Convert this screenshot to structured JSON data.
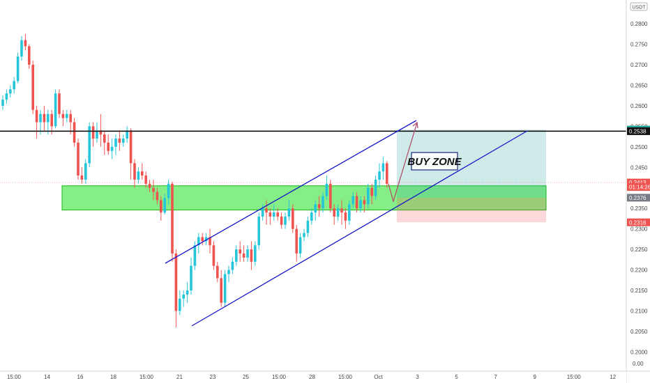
{
  "chart_data": {
    "type": "candlestick",
    "currency": "USDT",
    "y_axis": {
      "range": [
        0.1985,
        0.2835
      ],
      "ticks": [
        "0.2800",
        "0.2750",
        "0.2700",
        "0.2650",
        "0.2600",
        "0.2550",
        "0.2500",
        "0.2450",
        "0.2400",
        "0.2350",
        "0.2300",
        "0.2250",
        "0.2200",
        "0.2150",
        "0.2100",
        "0.2050",
        "0.2000"
      ],
      "bottom_label": "0.00"
    },
    "x_axis": {
      "ticks": [
        "15:00",
        "14",
        "16",
        "18",
        "15:00",
        "21",
        "23",
        "25",
        "15:00",
        "28",
        "15:00",
        "Oct",
        "3",
        "5",
        "7",
        "9",
        "15:00",
        "12",
        "1"
      ]
    },
    "price_tags": [
      {
        "text": "0.2542",
        "price": 0.2542,
        "color": "#26a69a"
      },
      {
        "text": "0.2538",
        "price": 0.2538,
        "color": "#111111"
      },
      {
        "text": "0.2413",
        "price": 0.2413,
        "color": "#ef5350"
      },
      {
        "text": "01:14:26",
        "price": 0.2402,
        "color": "#ef5350"
      },
      {
        "text": "0.2376",
        "price": 0.2376,
        "color": "#787b86"
      },
      {
        "text": "0.2316",
        "price": 0.2316,
        "color": "#ef5350"
      }
    ],
    "annotation": "BUY ZONE",
    "horizontal_line_price": 0.2538,
    "support_zone": [
      0.2346,
      0.2405
    ],
    "long_position": {
      "entry": 0.2376,
      "target": 0.2542,
      "stop": 0.2316
    },
    "colors": {
      "up": "#26c6da",
      "down": "#ef5350",
      "channel": "#1515c8",
      "zone": "#5de85d"
    },
    "candles": [
      [
        0.26,
        0.2615,
        0.259,
        0.2625
      ],
      [
        0.2615,
        0.263,
        0.2605,
        0.264
      ],
      [
        0.263,
        0.264,
        0.262,
        0.265
      ],
      [
        0.264,
        0.266,
        0.263,
        0.267
      ],
      [
        0.266,
        0.272,
        0.2655,
        0.273
      ],
      [
        0.272,
        0.276,
        0.271,
        0.277
      ],
      [
        0.276,
        0.2745,
        0.2735,
        0.2775
      ],
      [
        0.2745,
        0.27,
        0.269,
        0.275
      ],
      [
        0.27,
        0.259,
        0.258,
        0.271
      ],
      [
        0.259,
        0.256,
        0.252,
        0.26
      ],
      [
        0.256,
        0.258,
        0.253,
        0.259
      ],
      [
        0.258,
        0.256,
        0.254,
        0.26
      ],
      [
        0.256,
        0.258,
        0.253,
        0.259
      ],
      [
        0.258,
        0.255,
        0.253,
        0.259
      ],
      [
        0.255,
        0.263,
        0.2545,
        0.264
      ],
      [
        0.263,
        0.258,
        0.257,
        0.264
      ],
      [
        0.258,
        0.257,
        0.255,
        0.259
      ],
      [
        0.257,
        0.258,
        0.256,
        0.259
      ],
      [
        0.258,
        0.256,
        0.253,
        0.259
      ],
      [
        0.256,
        0.251,
        0.25,
        0.257
      ],
      [
        0.251,
        0.243,
        0.242,
        0.252
      ],
      [
        0.243,
        0.242,
        0.241,
        0.245
      ],
      [
        0.242,
        0.246,
        0.241,
        0.247
      ],
      [
        0.246,
        0.255,
        0.245,
        0.256
      ],
      [
        0.255,
        0.252,
        0.25,
        0.256
      ],
      [
        0.252,
        0.254,
        0.251,
        0.256
      ],
      [
        0.254,
        0.253,
        0.25,
        0.258
      ],
      [
        0.253,
        0.251,
        0.248,
        0.254
      ],
      [
        0.251,
        0.249,
        0.248,
        0.253
      ],
      [
        0.249,
        0.25,
        0.247,
        0.252
      ],
      [
        0.25,
        0.252,
        0.248,
        0.253
      ],
      [
        0.252,
        0.251,
        0.249,
        0.254
      ],
      [
        0.251,
        0.252,
        0.25,
        0.253
      ],
      [
        0.252,
        0.254,
        0.251,
        0.255
      ],
      [
        0.254,
        0.246,
        0.242,
        0.2545
      ],
      [
        0.246,
        0.242,
        0.24,
        0.247
      ],
      [
        0.242,
        0.244,
        0.241,
        0.245
      ],
      [
        0.244,
        0.243,
        0.242,
        0.246
      ],
      [
        0.243,
        0.241,
        0.24,
        0.244
      ],
      [
        0.241,
        0.24,
        0.239,
        0.242
      ],
      [
        0.24,
        0.239,
        0.237,
        0.242
      ],
      [
        0.239,
        0.237,
        0.236,
        0.24
      ],
      [
        0.237,
        0.234,
        0.232,
        0.238
      ],
      [
        0.234,
        0.2375,
        0.2335,
        0.2385
      ],
      [
        0.2375,
        0.241,
        0.236,
        0.242
      ],
      [
        0.241,
        0.224,
        0.222,
        0.2415
      ],
      [
        0.224,
        0.21,
        0.206,
        0.225
      ],
      [
        0.21,
        0.213,
        0.209,
        0.215
      ],
      [
        0.213,
        0.214,
        0.211,
        0.215
      ],
      [
        0.214,
        0.215,
        0.212,
        0.217
      ],
      [
        0.215,
        0.221,
        0.214,
        0.223
      ],
      [
        0.221,
        0.226,
        0.22,
        0.227
      ],
      [
        0.226,
        0.228,
        0.224,
        0.229
      ],
      [
        0.228,
        0.227,
        0.226,
        0.229
      ],
      [
        0.227,
        0.228,
        0.226,
        0.229
      ],
      [
        0.228,
        0.226,
        0.224,
        0.23
      ],
      [
        0.226,
        0.221,
        0.22,
        0.227
      ],
      [
        0.221,
        0.218,
        0.217,
        0.222
      ],
      [
        0.218,
        0.212,
        0.211,
        0.22
      ],
      [
        0.212,
        0.219,
        0.211,
        0.22
      ],
      [
        0.219,
        0.22,
        0.217,
        0.221
      ],
      [
        0.22,
        0.222,
        0.219,
        0.223
      ],
      [
        0.222,
        0.225,
        0.221,
        0.226
      ],
      [
        0.225,
        0.224,
        0.222,
        0.227
      ],
      [
        0.224,
        0.223,
        0.222,
        0.226
      ],
      [
        0.223,
        0.225,
        0.222,
        0.226
      ],
      [
        0.225,
        0.222,
        0.22,
        0.227
      ],
      [
        0.222,
        0.226,
        0.221,
        0.227
      ],
      [
        0.226,
        0.233,
        0.225,
        0.234
      ],
      [
        0.233,
        0.235,
        0.232,
        0.236
      ],
      [
        0.235,
        0.234,
        0.231,
        0.237
      ],
      [
        0.234,
        0.233,
        0.231,
        0.235
      ],
      [
        0.233,
        0.234,
        0.232,
        0.236
      ],
      [
        0.234,
        0.233,
        0.232,
        0.235
      ],
      [
        0.233,
        0.231,
        0.23,
        0.234
      ],
      [
        0.231,
        0.233,
        0.23,
        0.234
      ],
      [
        0.233,
        0.235,
        0.232,
        0.237
      ],
      [
        0.235,
        0.23,
        0.229,
        0.236
      ],
      [
        0.23,
        0.224,
        0.222,
        0.231
      ],
      [
        0.224,
        0.228,
        0.223,
        0.229
      ],
      [
        0.228,
        0.229,
        0.227,
        0.23
      ],
      [
        0.229,
        0.232,
        0.228,
        0.233
      ],
      [
        0.232,
        0.234,
        0.231,
        0.235
      ],
      [
        0.234,
        0.236,
        0.232,
        0.237
      ],
      [
        0.236,
        0.235,
        0.233,
        0.238
      ],
      [
        0.235,
        0.238,
        0.234,
        0.239
      ],
      [
        0.238,
        0.241,
        0.237,
        0.243
      ],
      [
        0.241,
        0.235,
        0.234,
        0.242
      ],
      [
        0.235,
        0.233,
        0.231,
        0.236
      ],
      [
        0.233,
        0.235,
        0.232,
        0.236
      ],
      [
        0.235,
        0.234,
        0.231,
        0.237
      ],
      [
        0.234,
        0.232,
        0.23,
        0.235
      ],
      [
        0.232,
        0.236,
        0.231,
        0.237
      ],
      [
        0.236,
        0.238,
        0.235,
        0.239
      ],
      [
        0.238,
        0.235,
        0.234,
        0.239
      ],
      [
        0.235,
        0.237,
        0.234,
        0.238
      ],
      [
        0.237,
        0.236,
        0.234,
        0.238
      ],
      [
        0.236,
        0.24,
        0.235,
        0.241
      ],
      [
        0.24,
        0.238,
        0.236,
        0.241
      ],
      [
        0.238,
        0.242,
        0.237,
        0.243
      ],
      [
        0.242,
        0.244,
        0.24,
        0.246
      ],
      [
        0.244,
        0.246,
        0.242,
        0.2475
      ],
      [
        0.246,
        0.241,
        0.24,
        0.2465
      ]
    ]
  }
}
